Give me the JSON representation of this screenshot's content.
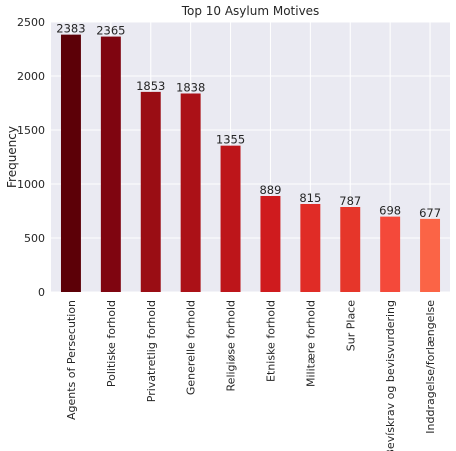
{
  "chart_data": {
    "type": "bar",
    "title": "Top 10 Asylum Motives",
    "xlabel": "",
    "ylabel": "Frequency",
    "ylim": [
      0,
      2500
    ],
    "yticks": [
      0,
      500,
      1000,
      1500,
      2000,
      2500
    ],
    "grid": true,
    "legend": "none",
    "categories": [
      "Agents of Persecution",
      "Politiske forhold",
      "Privatretlig forhold",
      "Generelle forhold",
      "Religiøse forhold",
      "Etniske forhold",
      "Militære forhold",
      "Sur Place",
      "Bevískrav og bevisvurdering",
      "Inddragelse/forlængelse"
    ],
    "values": [
      2383,
      2365,
      1853,
      1838,
      1355,
      889,
      815,
      787,
      698,
      677
    ],
    "colors": [
      "#5c0007",
      "#7f0510",
      "#9a0d14",
      "#ab1117",
      "#bd151a",
      "#cf1b1e",
      "#e02c26",
      "#e6362a",
      "#f4493a",
      "#fb6446"
    ],
    "background": "#eaeaf2"
  }
}
